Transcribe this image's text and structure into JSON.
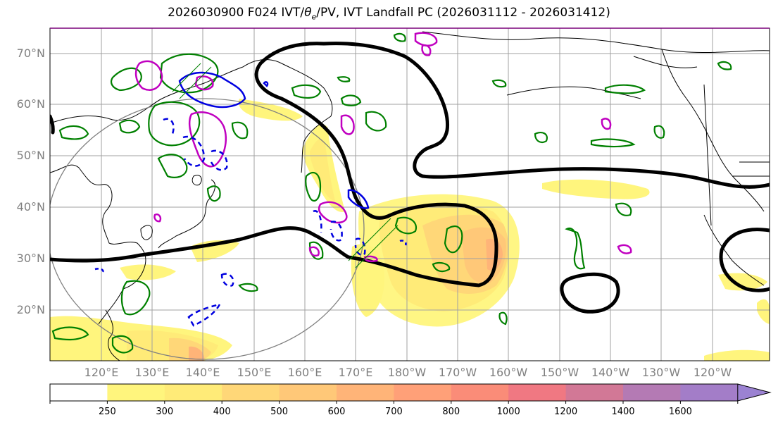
{
  "title_prefix": "2026030900 F024 IVT/",
  "title_theta": "θ",
  "title_theta_sub": "e",
  "title_suffix": "/PV, IVT Landfall PC (2026031112 - 2026031412)",
  "lat_labels": [
    "70°N",
    "60°N",
    "50°N",
    "40°N",
    "30°N",
    "20°N"
  ],
  "lon_labels": [
    "120°E",
    "130°E",
    "140°E",
    "150°E",
    "160°E",
    "170°E",
    "180°W",
    "170°W",
    "160°W",
    "150°W",
    "140°W",
    "130°W",
    "120°W"
  ],
  "colorbar": {
    "levels": [
      "250",
      "300",
      "400",
      "500",
      "600",
      "700",
      "800",
      "1000",
      "1200",
      "1400",
      "1600"
    ],
    "colors": [
      "#ffffff",
      "#fff57d",
      "#ffeb78",
      "#ffd778",
      "#ffc878",
      "#ffb478",
      "#ffa078",
      "#fa8c78",
      "#f07882",
      "#d27896",
      "#b47ab4",
      "#a37dc8",
      "#9b82d2"
    ]
  },
  "legend_colors": {
    "ivt_fill": "#ffe066",
    "pc_contour": "#000000",
    "theta_e": "#008000",
    "pv_positive": "#c000c0",
    "pv_negative": "#0000e0",
    "coastline": "#000000",
    "grid": "#a0a0a0"
  }
}
